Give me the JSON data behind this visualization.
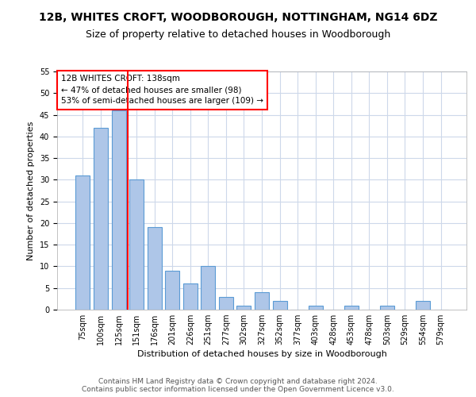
{
  "title": "12B, WHITES CROFT, WOODBOROUGH, NOTTINGHAM, NG14 6DZ",
  "subtitle": "Size of property relative to detached houses in Woodborough",
  "xlabel": "Distribution of detached houses by size in Woodborough",
  "ylabel": "Number of detached properties",
  "categories": [
    "75sqm",
    "100sqm",
    "125sqm",
    "151sqm",
    "176sqm",
    "201sqm",
    "226sqm",
    "251sqm",
    "277sqm",
    "302sqm",
    "327sqm",
    "352sqm",
    "377sqm",
    "403sqm",
    "428sqm",
    "453sqm",
    "478sqm",
    "503sqm",
    "529sqm",
    "554sqm",
    "579sqm"
  ],
  "values": [
    31,
    42,
    46,
    30,
    19,
    9,
    6,
    10,
    3,
    1,
    4,
    2,
    0,
    1,
    0,
    1,
    0,
    1,
    0,
    2,
    0
  ],
  "bar_color": "#aec6e8",
  "bar_edge_color": "#5b9bd5",
  "property_sqm": 138,
  "red_line_bar_index": 2.5,
  "annotation_text": "12B WHITES CROFT: 138sqm\n← 47% of detached houses are smaller (98)\n53% of semi-detached houses are larger (109) →",
  "annotation_box_color": "white",
  "annotation_box_edge": "red",
  "red_line_color": "red",
  "grid_color": "#cdd8ea",
  "background_color": "white",
  "ylim": [
    0,
    55
  ],
  "yticks": [
    0,
    5,
    10,
    15,
    20,
    25,
    30,
    35,
    40,
    45,
    50,
    55
  ],
  "footnote": "Contains HM Land Registry data © Crown copyright and database right 2024.\nContains public sector information licensed under the Open Government Licence v3.0.",
  "title_fontsize": 10,
  "subtitle_fontsize": 9,
  "ylabel_fontsize": 8,
  "xlabel_fontsize": 8,
  "tick_fontsize": 7,
  "footnote_fontsize": 6.5
}
